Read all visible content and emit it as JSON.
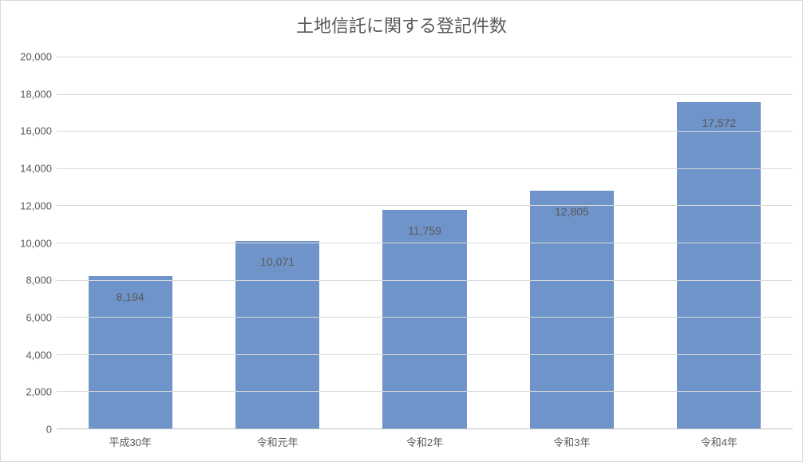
{
  "chart": {
    "type": "bar",
    "title": "土地信託に関する登記件数",
    "title_fontsize": 22,
    "title_color": "#595959",
    "background_color": "#ffffff",
    "border_color": "#d9d9d9",
    "categories": [
      "平成30年",
      "令和元年",
      "令和2年",
      "令和3年",
      "令和4年"
    ],
    "values": [
      8194,
      10071,
      11759,
      12805,
      17572
    ],
    "value_labels": [
      "8,194",
      "10,071",
      "11,759",
      "12,805",
      "17,572"
    ],
    "bar_color": "#6f94c9",
    "bar_width_pct": 57,
    "data_label_fontsize": 14,
    "data_label_color": "#595959",
    "data_label_offset_top": 18,
    "axis_label_fontsize": 13,
    "axis_label_color": "#595959",
    "grid_color": "#d9d9d9",
    "axis_line_color": "#bfbfbf",
    "ylim": [
      0,
      20000
    ],
    "ytick_step": 2000,
    "ytick_labels": [
      "0",
      "2,000",
      "4,000",
      "6,000",
      "8,000",
      "10,000",
      "12,000",
      "14,000",
      "16,000",
      "18,000",
      "20,000"
    ]
  }
}
